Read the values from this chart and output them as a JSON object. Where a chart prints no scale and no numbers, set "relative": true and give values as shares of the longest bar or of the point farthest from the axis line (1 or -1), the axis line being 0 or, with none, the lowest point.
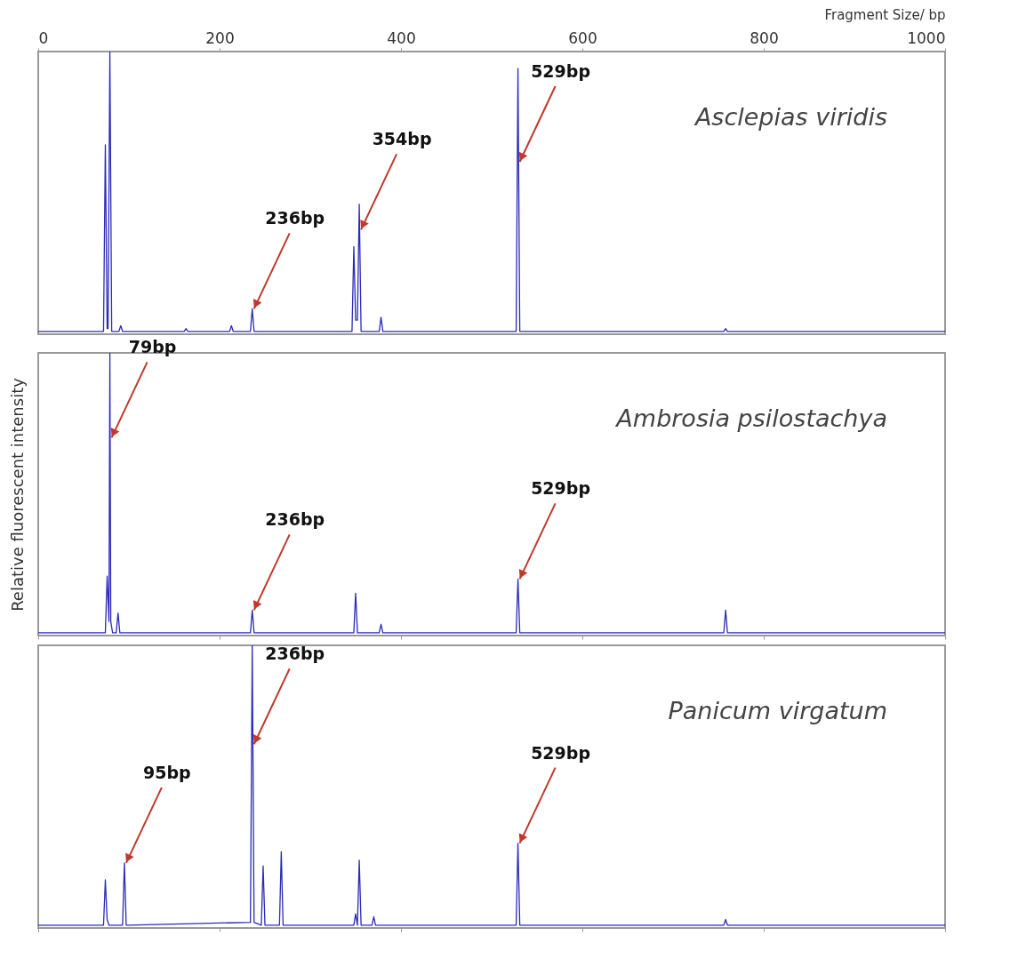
{
  "chart_data": [
    {
      "type": "line",
      "relative": true,
      "xlabel": "Fragment Size/ bp",
      "xlim": [
        0,
        1000
      ],
      "xticks": [
        0,
        200,
        400,
        600,
        800,
        1000
      ],
      "tick_labels": "x",
      "series": [
        {
          "name": "Asclepias viridis",
          "color": "#2b2bb8",
          "x": [
            0,
            72,
            74,
            76,
            77,
            79,
            81,
            89,
            91,
            93,
            161,
            163,
            165,
            211,
            213,
            215,
            234,
            236,
            238,
            346,
            348,
            350,
            352,
            354,
            356,
            376,
            378,
            380,
            527,
            529,
            531,
            756,
            758,
            760,
            1000
          ],
          "values": [
            0.01,
            0.01,
            0.67,
            0.02,
            0.02,
            1,
            0.01,
            0.01,
            0.03,
            0.01,
            0.01,
            0.02,
            0.01,
            0.01,
            0.03,
            0.01,
            0.01,
            0.09,
            0.01,
            0.01,
            0.31,
            0.05,
            0.05,
            0.46,
            0.01,
            0.01,
            0.06,
            0.01,
            0.01,
            0.94,
            0.01,
            0.01,
            0.02,
            0.01,
            0.01
          ]
        }
      ],
      "annotations": [
        {
          "text": "236bp",
          "x": 236,
          "y": 0.09
        },
        {
          "text": "354bp",
          "x": 354,
          "y": 0.37
        },
        {
          "text": "529bp",
          "x": 529,
          "y": 0.61
        }
      ]
    },
    {
      "type": "line",
      "relative": true,
      "ylabel": "Relative fluorescent intensity",
      "xlim": [
        0,
        1000
      ],
      "xticks": [
        0,
        200,
        400,
        600,
        800,
        1000
      ],
      "tick_labels": false,
      "series": [
        {
          "name": "Ambrosia psilostachya",
          "color": "#2b2bb8",
          "x": [
            0,
            74,
            76,
            78,
            79,
            80,
            82,
            86,
            88,
            90,
            234,
            236,
            238,
            348,
            350,
            352,
            376,
            378,
            380,
            527,
            529,
            531,
            756,
            758,
            760,
            1000
          ],
          "values": [
            0.01,
            0.01,
            0.21,
            0.05,
            1,
            0.05,
            0.01,
            0.01,
            0.08,
            0.01,
            0.01,
            0.09,
            0.01,
            0.01,
            0.15,
            0.01,
            0.01,
            0.04,
            0.01,
            0.01,
            0.2,
            0.01,
            0.01,
            0.09,
            0.01,
            0.01
          ]
        }
      ],
      "annotations": [
        {
          "text": "79bp",
          "x": 79,
          "y": 0.7
        },
        {
          "text": "236bp",
          "x": 236,
          "y": 0.09
        },
        {
          "text": "529bp",
          "x": 529,
          "y": 0.2
        }
      ]
    },
    {
      "type": "line",
      "relative": true,
      "xlim": [
        0,
        1000
      ],
      "xticks": [
        0,
        200,
        400,
        600,
        800,
        1000
      ],
      "tick_labels": false,
      "series": [
        {
          "name": "Panicum virgatum",
          "color": "#2b2bb8",
          "x": [
            0,
            72,
            74,
            76,
            78,
            93,
            95,
            97,
            234,
            236,
            238,
            246,
            248,
            250,
            266,
            268,
            270,
            348,
            350,
            352,
            354,
            356,
            368,
            370,
            372,
            527,
            529,
            531,
            756,
            758,
            760,
            1000
          ],
          "values": [
            0.01,
            0.01,
            0.17,
            0.03,
            0.01,
            0.01,
            0.23,
            0.01,
            0.02,
            1,
            0.02,
            0.01,
            0.22,
            0.01,
            0.01,
            0.27,
            0.01,
            0.01,
            0.05,
            0.01,
            0.24,
            0.01,
            0.01,
            0.04,
            0.01,
            0.01,
            0.3,
            0.01,
            0.01,
            0.03,
            0.01,
            0.01
          ]
        }
      ],
      "annotations": [
        {
          "text": "95bp",
          "x": 95,
          "y": 0.23
        },
        {
          "text": "236bp",
          "x": 236,
          "y": 0.65
        },
        {
          "text": "529bp",
          "x": 529,
          "y": 0.3
        }
      ]
    }
  ]
}
